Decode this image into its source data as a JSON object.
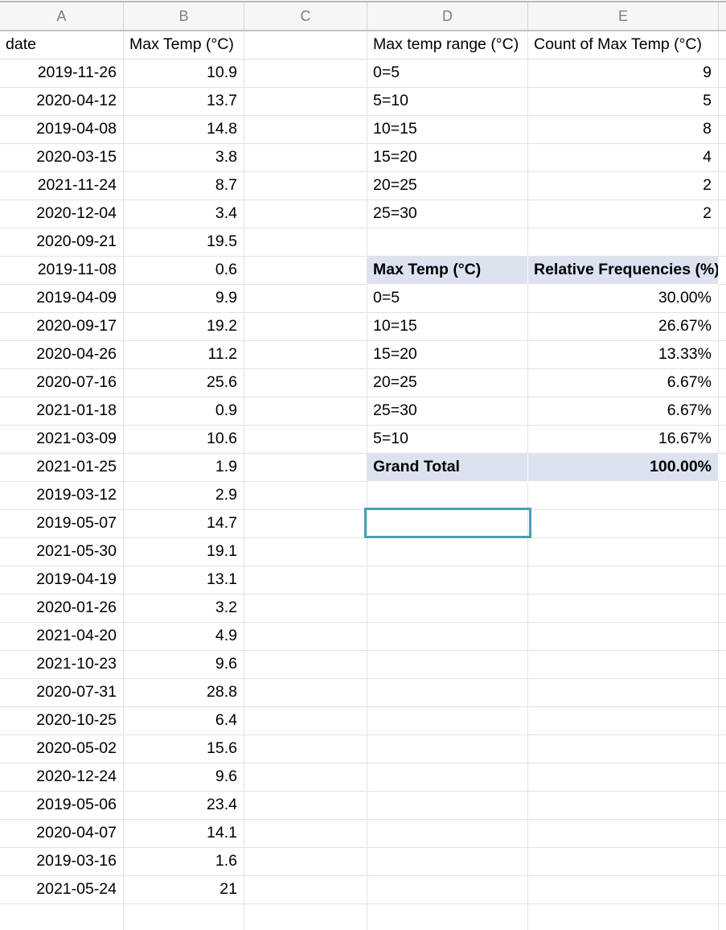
{
  "sheet": {
    "column_headers": [
      "A",
      "B",
      "C",
      "D",
      "E"
    ],
    "data_table": {
      "date_header": "date",
      "temp_header": "Max Temp (°C)",
      "rows": [
        [
          "2019-11-26",
          "10.9"
        ],
        [
          "2020-04-12",
          "13.7"
        ],
        [
          "2019-04-08",
          "14.8"
        ],
        [
          "2020-03-15",
          "3.8"
        ],
        [
          "2021-11-24",
          "8.7"
        ],
        [
          "2020-12-04",
          "3.4"
        ],
        [
          "2020-09-21",
          "19.5"
        ],
        [
          "2019-11-08",
          "0.6"
        ],
        [
          "2019-04-09",
          "9.9"
        ],
        [
          "2020-09-17",
          "19.2"
        ],
        [
          "2020-04-26",
          "11.2"
        ],
        [
          "2020-07-16",
          "25.6"
        ],
        [
          "2021-01-18",
          "0.9"
        ],
        [
          "2021-03-09",
          "10.6"
        ],
        [
          "2021-01-25",
          "1.9"
        ],
        [
          "2019-03-12",
          "2.9"
        ],
        [
          "2019-05-07",
          "14.7"
        ],
        [
          "2021-05-30",
          "19.1"
        ],
        [
          "2019-04-19",
          "13.1"
        ],
        [
          "2020-01-26",
          "3.2"
        ],
        [
          "2021-04-20",
          "4.9"
        ],
        [
          "2021-10-23",
          "9.6"
        ],
        [
          "2020-07-31",
          "28.8"
        ],
        [
          "2020-10-25",
          "6.4"
        ],
        [
          "2020-05-02",
          "15.6"
        ],
        [
          "2020-12-24",
          "9.6"
        ],
        [
          "2019-05-06",
          "23.4"
        ],
        [
          "2020-04-07",
          "14.1"
        ],
        [
          "2019-03-16",
          "1.6"
        ],
        [
          "2021-05-24",
          "21"
        ]
      ]
    },
    "pivot_counts": {
      "range_header": "Max temp range (°C)",
      "count_header": "Count of Max Temp (°C)",
      "rows": [
        [
          "0=5",
          "9"
        ],
        [
          "5=10",
          "5"
        ],
        [
          "10=15",
          "8"
        ],
        [
          "15=20",
          "4"
        ],
        [
          "20=25",
          "2"
        ],
        [
          "25=30",
          "2"
        ]
      ]
    },
    "pivot_relative": {
      "range_header": "Max Temp (°C)",
      "freq_header": "Relative Frequencies (%)",
      "rows": [
        [
          "0=5",
          "30.00%"
        ],
        [
          "10=15",
          "26.67%"
        ],
        [
          "15=20",
          "13.33%"
        ],
        [
          "20=25",
          "6.67%"
        ],
        [
          "25=30",
          "6.67%"
        ],
        [
          "5=10",
          "16.67%"
        ]
      ],
      "total_label": "Grand Total",
      "total_value": "100.00%"
    },
    "selection": {
      "selected_cell": "D18"
    },
    "colors": {
      "selection_border": "#4a9fb5",
      "pivot_header_bg": "#dde2f0",
      "gridline": "#e2e2e2",
      "column_header_bg": "#f6f6f8",
      "column_header_text": "#7e7e82",
      "column_header_border": "#c2c2c2"
    }
  }
}
